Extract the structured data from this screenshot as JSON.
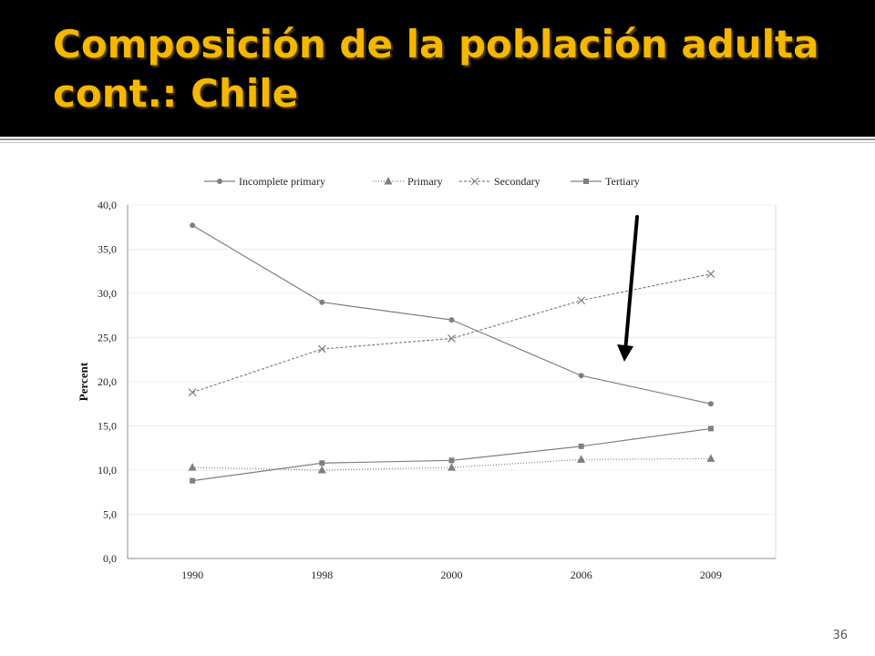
{
  "slide": {
    "title": "Composición de la población adulta\ncont.: Chile",
    "page_number": "36",
    "title_color": "#f5b800",
    "title_background": "#000000"
  },
  "chart_data": {
    "type": "line",
    "categories": [
      "1990",
      "1998",
      "2000",
      "2006",
      "2009"
    ],
    "ylabel": "Percent",
    "xlabel": "",
    "ylim": [
      0,
      40
    ],
    "y_ticks": [
      "0,0",
      "5,0",
      "10,0",
      "15,0",
      "20,0",
      "25,0",
      "30,0",
      "35,0",
      "40,0"
    ],
    "grid": true,
    "legend_position": "top",
    "series": [
      {
        "name": "Incomplete primary",
        "values": [
          37.7,
          29.0,
          27.0,
          20.7,
          17.5
        ],
        "marker": "circle",
        "line": "solid",
        "color": "#7f7f7f"
      },
      {
        "name": "Primary",
        "values": [
          10.3,
          10.0,
          10.3,
          11.2,
          11.3
        ],
        "marker": "triangle",
        "line": "dotted",
        "color": "#7f7f7f"
      },
      {
        "name": "Secondary",
        "values": [
          18.8,
          23.7,
          24.9,
          29.2,
          32.2
        ],
        "marker": "x",
        "line": "dashed",
        "color": "#7f7f7f"
      },
      {
        "name": "Tertiary",
        "values": [
          8.8,
          10.8,
          11.1,
          12.7,
          14.7
        ],
        "marker": "square",
        "line": "solid",
        "color": "#7f7f7f"
      }
    ],
    "annotation": {
      "type": "arrow",
      "color": "#000000",
      "points_to": "between 2006 and 2009"
    }
  }
}
